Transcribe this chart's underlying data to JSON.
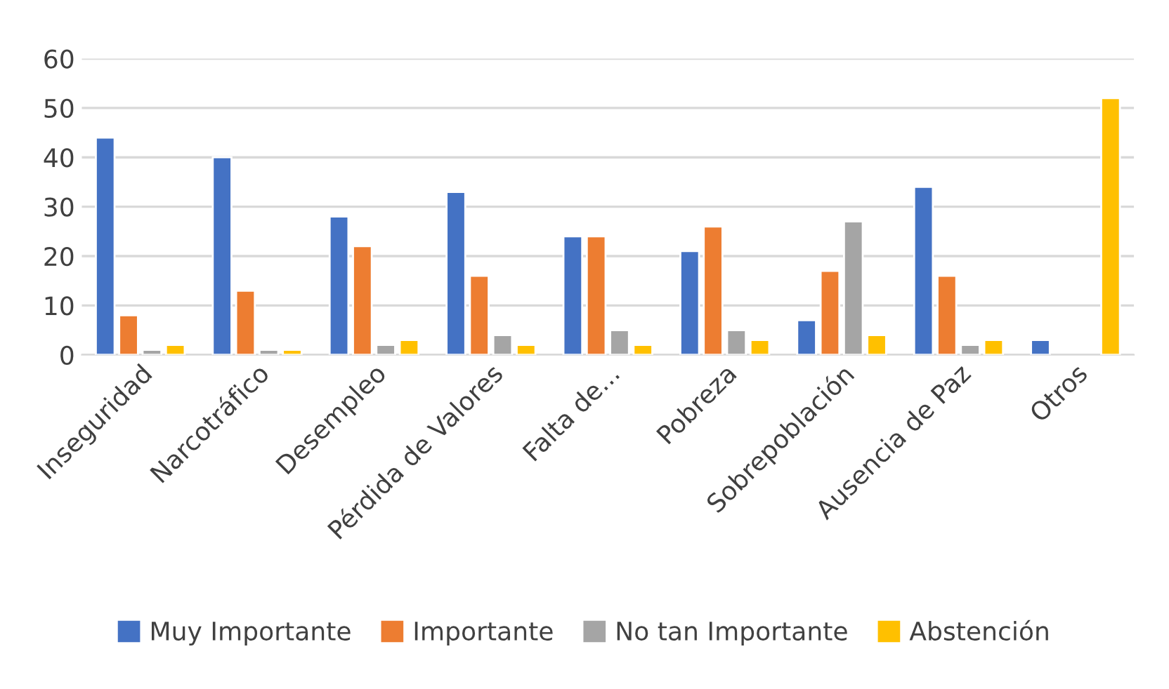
{
  "chart_data": {
    "type": "bar",
    "categories": [
      "Inseguridad",
      "Narcotráfico",
      "Desempleo",
      "Pérdida de Valores",
      "Falta de...",
      "Pobreza",
      "Sobrepoblación",
      "Ausencia de Paz",
      "Otros"
    ],
    "series": [
      {
        "name": "Muy Importante",
        "color": "#4472c4",
        "values": [
          44,
          40,
          28,
          33,
          24,
          21,
          7,
          34,
          3
        ]
      },
      {
        "name": "Importante",
        "color": "#ed7d31",
        "values": [
          8,
          13,
          22,
          16,
          24,
          26,
          17,
          16,
          null
        ]
      },
      {
        "name": "No tan Importante",
        "color": "#a5a5a5",
        "values": [
          1,
          1,
          2,
          4,
          5,
          5,
          27,
          2,
          null
        ]
      },
      {
        "name": "Abstención",
        "color": "#ffc000",
        "values": [
          2,
          1,
          3,
          2,
          2,
          3,
          4,
          3,
          52
        ]
      }
    ],
    "ylim": [
      0,
      60
    ],
    "yticks": [
      0,
      10,
      20,
      30,
      40,
      50,
      60
    ],
    "grid": "y",
    "legend": "bottom"
  }
}
